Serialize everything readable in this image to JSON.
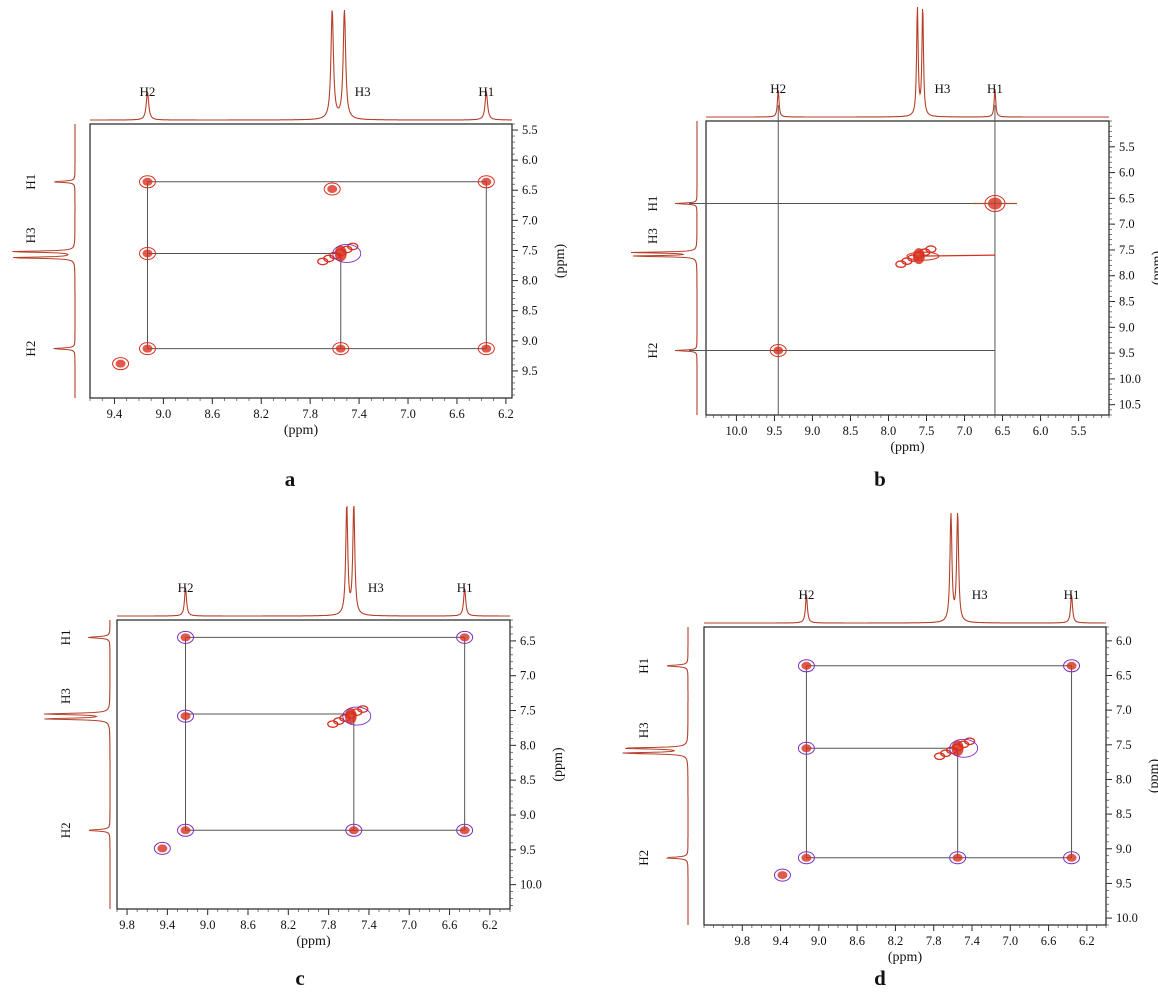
{
  "chart_data": [
    {
      "type": "scatter",
      "panel_label": "a",
      "xlabel": "(ppm)",
      "ylabel": "(ppm)",
      "x_ticks": [
        "9.4",
        "9.0",
        "8.6",
        "8.2",
        "7.8",
        "7.4",
        "7.0",
        "6.6",
        "6.2"
      ],
      "y_ticks": [
        "5.5",
        "6.0",
        "6.5",
        "7.0",
        "7.5",
        "8.0",
        "8.5",
        "9.0",
        "9.5"
      ],
      "xlim": [
        9.6,
        6.15
      ],
      "ylim": [
        5.4,
        9.95
      ],
      "peak_labels": [
        "H2",
        "H3",
        "H1"
      ],
      "peaks_ppm": {
        "H1": 6.36,
        "H2": 9.13,
        "H3": 7.55
      },
      "proj_peaks": [
        9.13,
        7.62,
        7.52,
        6.36
      ],
      "cross_peaks": [
        {
          "x": 6.36,
          "y": 6.36
        },
        {
          "x": 9.13,
          "y": 6.36
        },
        {
          "x": 9.13,
          "y": 7.55
        },
        {
          "x": 7.55,
          "y": 7.55
        },
        {
          "x": 9.13,
          "y": 9.13
        },
        {
          "x": 7.55,
          "y": 9.13
        },
        {
          "x": 6.36,
          "y": 9.13
        },
        {
          "x": 9.35,
          "y": 9.38
        },
        {
          "x": 7.62,
          "y": 6.48
        }
      ],
      "contour_color": "#d7301f",
      "secondary_color": "#7b2fbe",
      "connectors": true,
      "crosshairs": false
    },
    {
      "type": "scatter",
      "panel_label": "b",
      "xlabel": "(ppm)",
      "ylabel": "(ppm)",
      "x_ticks": [
        "10.0",
        "9.5",
        "9.0",
        "8.5",
        "8.0",
        "7.5",
        "7.0",
        "6.5",
        "6.0",
        "5.5"
      ],
      "y_ticks": [
        "5.5",
        "6.0",
        "6.5",
        "7.0",
        "7.5",
        "8.0",
        "8.5",
        "9.0",
        "9.5",
        "10.0",
        "10.5"
      ],
      "xlim": [
        10.4,
        5.1
      ],
      "ylim": [
        5.0,
        10.7
      ],
      "peak_labels": [
        "H2",
        "H3",
        "H1"
      ],
      "peaks_ppm": {
        "H1": 6.6,
        "H2": 9.45,
        "H3": 7.58
      },
      "proj_peaks": [
        9.45,
        7.62,
        7.55,
        6.6
      ],
      "cross_peaks": [
        {
          "x": 6.6,
          "y": 6.6
        },
        {
          "x": 7.6,
          "y": 7.62
        },
        {
          "x": 9.45,
          "y": 9.45
        }
      ],
      "contour_color": "#d7301f",
      "secondary_color": "#7b2fbe",
      "connectors": false,
      "crosshairs": true
    },
    {
      "type": "scatter",
      "panel_label": "c",
      "xlabel": "(ppm)",
      "ylabel": "(ppm)",
      "x_ticks": [
        "9.8",
        "9.4",
        "9.0",
        "8.6",
        "8.2",
        "7.8",
        "7.4",
        "7.0",
        "6.6",
        "6.2"
      ],
      "y_ticks": [
        "6.5",
        "7.0",
        "7.5",
        "8.0",
        "8.5",
        "9.0",
        "9.5",
        "10.0"
      ],
      "xlim": [
        9.9,
        6.0
      ],
      "ylim": [
        6.2,
        10.35
      ],
      "peak_labels": [
        "H2",
        "H3",
        "H1"
      ],
      "peaks_ppm": {
        "H1": 6.45,
        "H2": 9.22,
        "H3": 7.55
      },
      "proj_peaks": [
        9.22,
        7.62,
        7.55,
        6.45
      ],
      "cross_peaks": [
        {
          "x": 6.45,
          "y": 6.45
        },
        {
          "x": 9.22,
          "y": 6.45
        },
        {
          "x": 9.22,
          "y": 7.58
        },
        {
          "x": 7.58,
          "y": 7.58
        },
        {
          "x": 9.22,
          "y": 9.22
        },
        {
          "x": 7.55,
          "y": 9.22
        },
        {
          "x": 6.45,
          "y": 9.22
        },
        {
          "x": 9.45,
          "y": 9.48
        }
      ],
      "contour_color": "#d7301f",
      "secondary_color": "#7b2fbe",
      "connectors": true,
      "crosshairs": false
    },
    {
      "type": "scatter",
      "panel_label": "d",
      "xlabel": "(ppm)",
      "ylabel": "(ppm)",
      "x_ticks": [
        "9.8",
        "9.4",
        "9.0",
        "8.6",
        "8.2",
        "7.8",
        "7.4",
        "7.0",
        "6.6",
        "6.2"
      ],
      "y_ticks": [
        "6.0",
        "6.5",
        "7.0",
        "7.5",
        "8.0",
        "8.5",
        "9.0",
        "9.5",
        "10.0"
      ],
      "xlim": [
        10.2,
        6.0
      ],
      "ylim": [
        5.8,
        10.1
      ],
      "peak_labels": [
        "H2",
        "H3",
        "H1"
      ],
      "peaks_ppm": {
        "H1": 6.36,
        "H2": 9.13,
        "H3": 7.55
      },
      "proj_peaks": [
        9.13,
        7.62,
        7.55,
        6.36
      ],
      "cross_peaks": [
        {
          "x": 6.36,
          "y": 6.36
        },
        {
          "x": 9.13,
          "y": 6.36
        },
        {
          "x": 9.13,
          "y": 7.55
        },
        {
          "x": 7.55,
          "y": 7.55
        },
        {
          "x": 9.13,
          "y": 9.13
        },
        {
          "x": 7.55,
          "y": 9.13
        },
        {
          "x": 6.36,
          "y": 9.13
        },
        {
          "x": 9.38,
          "y": 9.38
        }
      ],
      "contour_color": "#d7301f",
      "secondary_color": "#7b2fbe",
      "connectors": true,
      "crosshairs": false
    }
  ]
}
